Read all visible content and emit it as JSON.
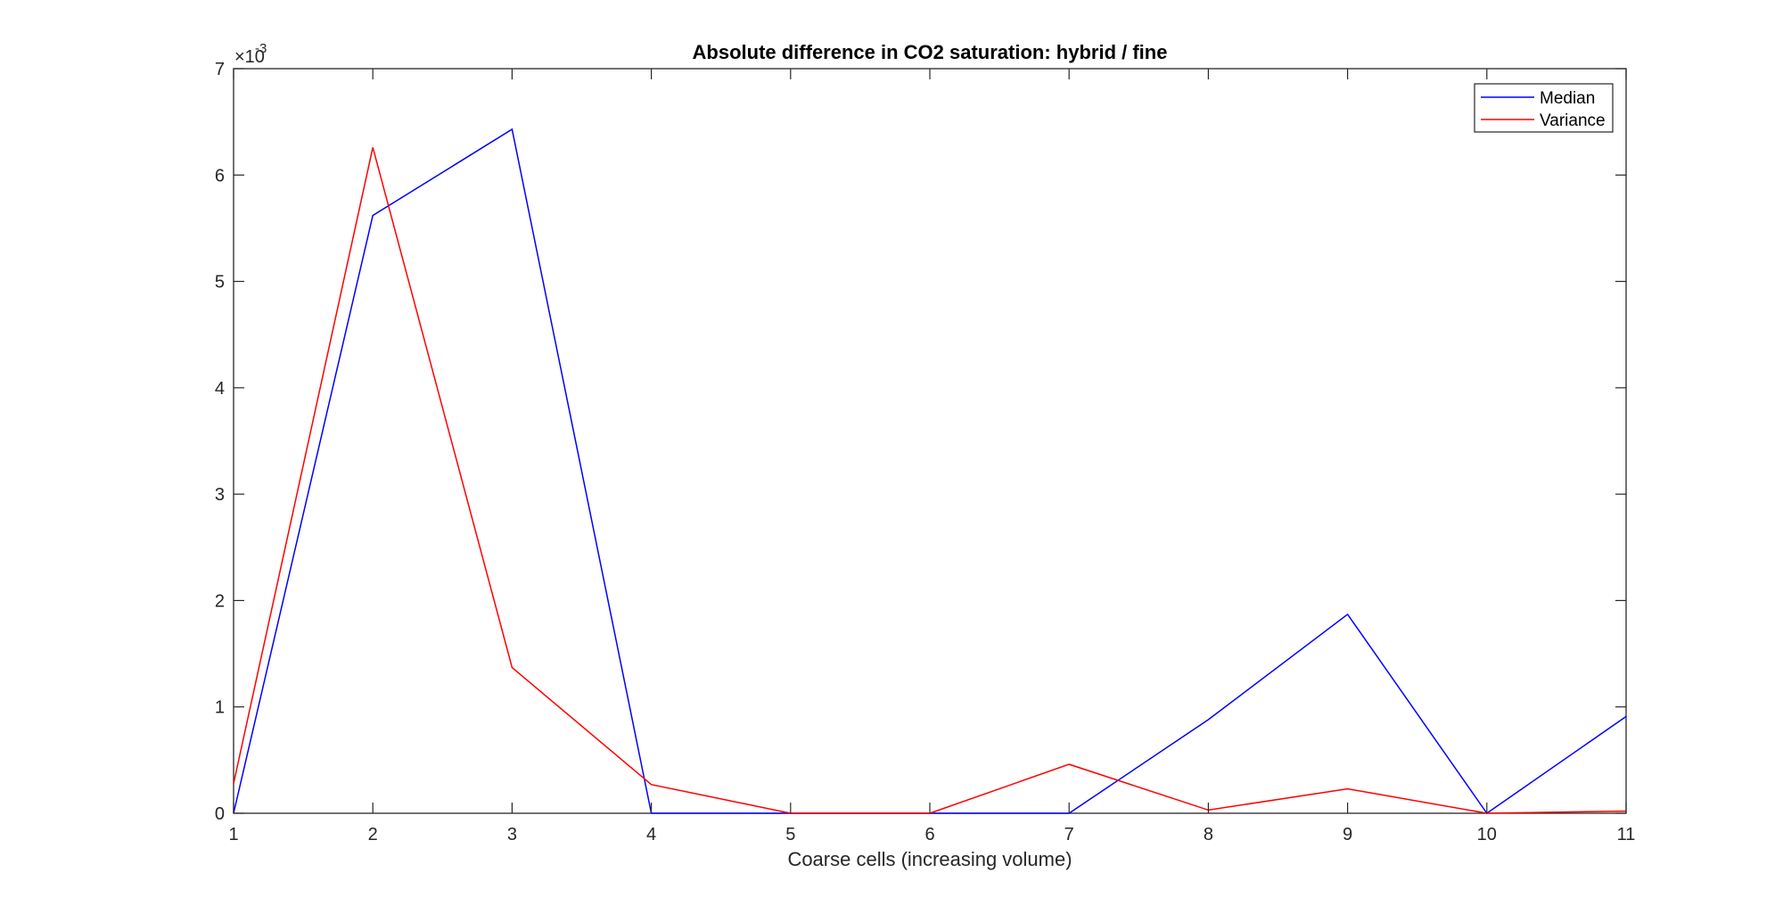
{
  "chart_data": {
    "type": "line",
    "title": "Absolute difference in CO2 saturation: hybrid / fine",
    "xlabel": "Coarse cells (increasing volume)",
    "ylabel": "",
    "x": [
      1,
      2,
      3,
      4,
      5,
      6,
      7,
      8,
      9,
      10,
      11
    ],
    "xlim": [
      1,
      11
    ],
    "ylim": [
      0,
      0.007
    ],
    "x_ticks": [
      1,
      2,
      3,
      4,
      5,
      6,
      7,
      8,
      9,
      10,
      11
    ],
    "x_tick_labels": [
      "1",
      "2",
      "3",
      "4",
      "5",
      "6",
      "7",
      "8",
      "9",
      "10",
      "11"
    ],
    "y_ticks": [
      0,
      0.001,
      0.002,
      0.003,
      0.004,
      0.005,
      0.006,
      0.007
    ],
    "y_tick_labels": [
      "0",
      "1",
      "2",
      "3",
      "4",
      "5",
      "6",
      "7"
    ],
    "y_exponent": {
      "base": "×10",
      "power": "-3"
    },
    "grid": false,
    "legend_position": "top-right",
    "series": [
      {
        "name": "Median",
        "color": "#0000ff",
        "values": [
          0.0,
          0.00562,
          0.00643,
          0.0,
          0.0,
          0.0,
          0.0,
          0.00088,
          0.00187,
          0.0,
          0.00091
        ]
      },
      {
        "name": "Variance",
        "color": "#ff0000",
        "values": [
          0.00028,
          0.00626,
          0.00137,
          0.00027,
          0.0,
          0.0,
          0.00046,
          3e-05,
          0.00023,
          0.0,
          2e-05
        ]
      }
    ]
  }
}
